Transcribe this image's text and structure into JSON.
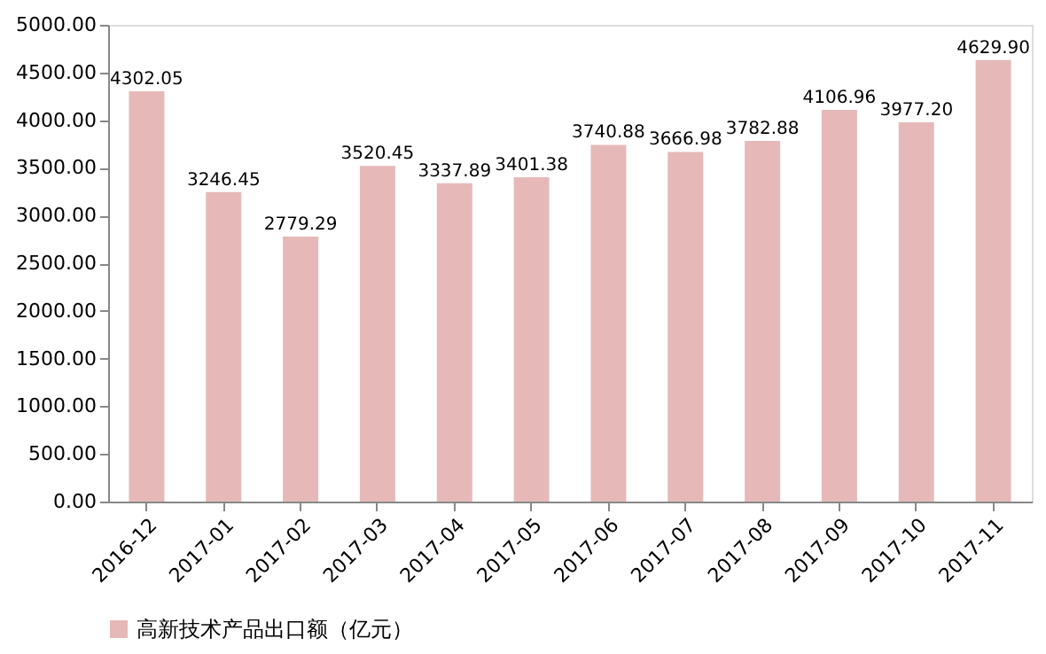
{
  "chart_data": {
    "type": "bar",
    "categories": [
      "2016-12",
      "2017-01",
      "2017-02",
      "2017-03",
      "2017-04",
      "2017-05",
      "2017-06",
      "2017-07",
      "2017-08",
      "2017-09",
      "2017-10",
      "2017-11"
    ],
    "series": [
      {
        "name": "高新技术产品出口额（亿元）",
        "color": "#e6b9b8",
        "values": [
          4302.05,
          3246.45,
          2779.29,
          3520.45,
          3337.89,
          3401.38,
          3740.88,
          3666.98,
          3782.88,
          4106.96,
          3977.2,
          4629.9
        ],
        "value_labels": [
          "4302.05",
          "3246.45",
          "2779.29",
          "3520.45",
          "3337.89",
          "3401.38",
          "3740.88",
          "3666.98",
          "3782.88",
          "4106.96",
          "3977.20",
          "4629.90"
        ]
      }
    ],
    "ylim": [
      0,
      5000
    ],
    "yticks": [
      {
        "value": 0,
        "label": "0.00"
      },
      {
        "value": 500,
        "label": "500.00"
      },
      {
        "value": 1000,
        "label": "1000.00"
      },
      {
        "value": 1500,
        "label": "1500.00"
      },
      {
        "value": 2000,
        "label": "2000.00"
      },
      {
        "value": 2500,
        "label": "2500.00"
      },
      {
        "value": 3000,
        "label": "3000.00"
      },
      {
        "value": 3500,
        "label": "3500.00"
      },
      {
        "value": 4000,
        "label": "4000.00"
      },
      {
        "value": 4500,
        "label": "4500.00"
      },
      {
        "value": 5000,
        "label": "5000.00"
      }
    ],
    "grid": false,
    "legend": "bottom"
  }
}
